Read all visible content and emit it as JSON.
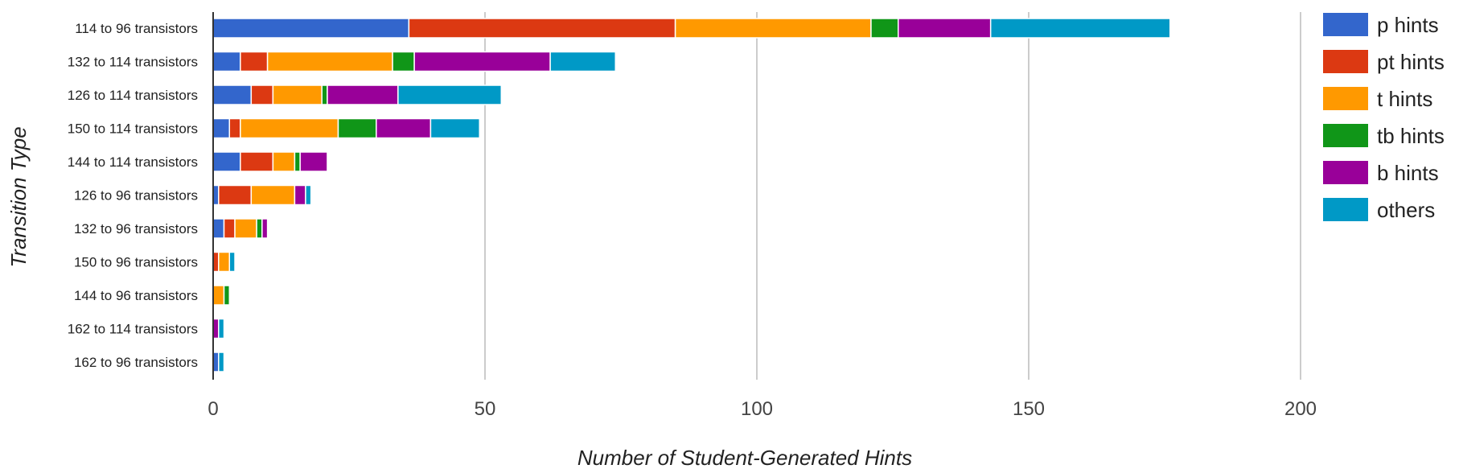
{
  "chart_data": {
    "type": "bar",
    "orientation": "horizontal",
    "stacked": true,
    "xlabel": "Number of Student-Generated Hints",
    "ylabel": "Transition Type",
    "xlim": [
      0,
      200
    ],
    "xticks": [
      0,
      50,
      100,
      150,
      200
    ],
    "grid": true,
    "legend_position": "right",
    "categories": [
      "114 to 96 transistors",
      "132 to 114 transistors",
      "126 to 114 transistors",
      "150 to 114 transistors",
      "144 to 114 transistors",
      "126 to 96 transistors",
      "132 to 96 transistors",
      "150 to 96 transistors",
      "144 to 96 transistors",
      "162 to 114 transistors",
      "162 to 96 transistors"
    ],
    "series": [
      {
        "name": "p hints",
        "color": "#3366cc",
        "values": [
          36,
          5,
          7,
          3,
          5,
          1,
          2,
          0,
          0,
          0,
          1
        ]
      },
      {
        "name": "pt hints",
        "color": "#dc3912",
        "values": [
          49,
          5,
          4,
          2,
          6,
          6,
          2,
          1,
          0,
          0,
          0
        ]
      },
      {
        "name": "t hints",
        "color": "#ff9900",
        "values": [
          36,
          23,
          9,
          18,
          4,
          8,
          4,
          2,
          2,
          0,
          0
        ]
      },
      {
        "name": "tb hints",
        "color": "#109618",
        "values": [
          5,
          4,
          1,
          7,
          1,
          0,
          1,
          0,
          1,
          0,
          0
        ]
      },
      {
        "name": "b hints",
        "color": "#990099",
        "values": [
          17,
          25,
          13,
          10,
          5,
          2,
          1,
          0,
          0,
          1,
          0
        ]
      },
      {
        "name": "others",
        "color": "#0099c6",
        "values": [
          33,
          12,
          19,
          9,
          0,
          1,
          0,
          1,
          0,
          1,
          1
        ]
      }
    ]
  }
}
